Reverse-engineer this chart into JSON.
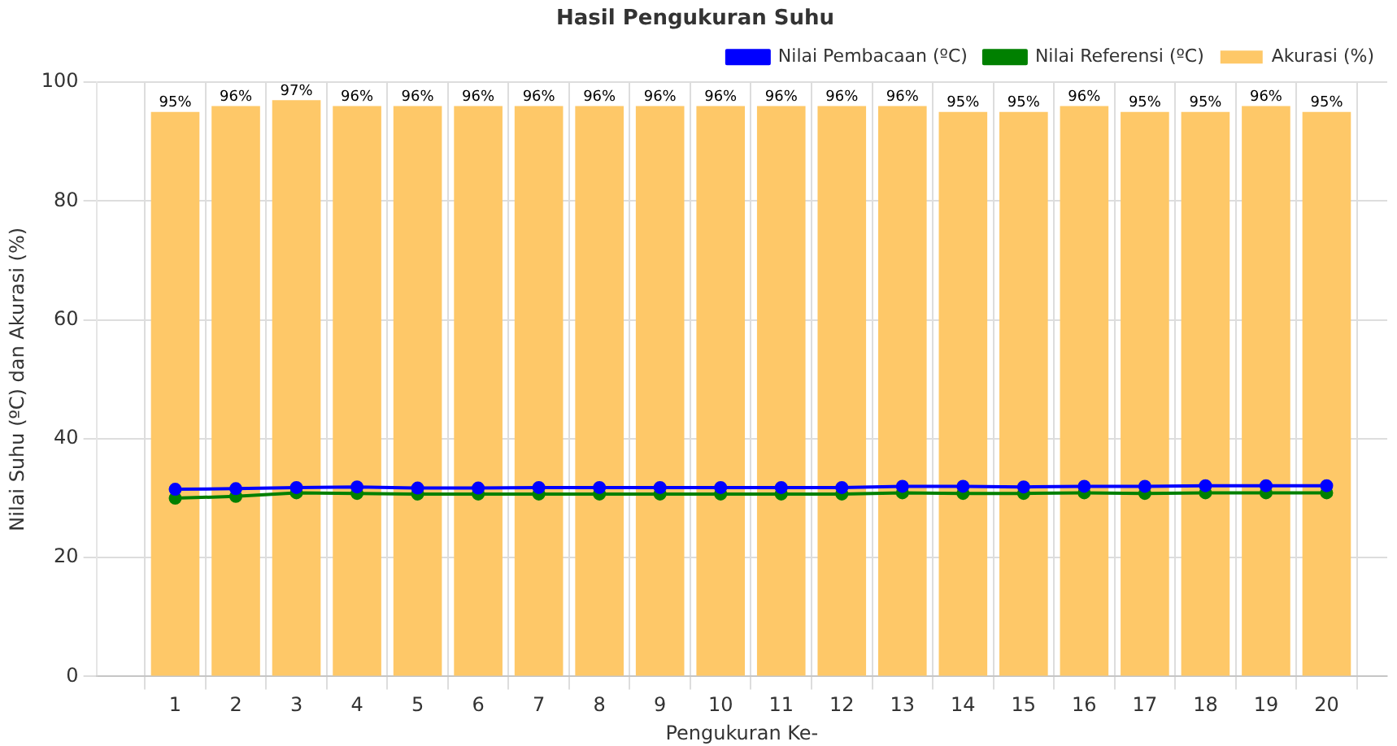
{
  "chart_data": {
    "type": "bar",
    "title": "Hasil Pengukuran Suhu",
    "xlabel": "Pengukuran Ke-",
    "ylabel": "Nilai Suhu (ºC) dan Akurasi (%)",
    "x": [
      1,
      2,
      3,
      4,
      5,
      6,
      7,
      8,
      9,
      10,
      11,
      12,
      13,
      14,
      15,
      16,
      17,
      18,
      19,
      20
    ],
    "xlim": [
      -0.3,
      21
    ],
    "xticks": [
      1,
      2,
      3,
      4,
      5,
      6,
      7,
      8,
      9,
      10,
      11,
      12,
      13,
      14,
      15,
      16,
      17,
      18,
      19,
      20
    ],
    "ylim": [
      0,
      100
    ],
    "yticks": [
      0,
      20,
      40,
      60,
      80,
      100
    ],
    "series": [
      {
        "name": "Nilai Pembacaan (ºC)",
        "type": "line",
        "color": "#0000ff",
        "marker": "circle",
        "values": [
          31.5,
          31.6,
          31.8,
          31.9,
          31.7,
          31.7,
          31.8,
          31.8,
          31.8,
          31.8,
          31.8,
          31.8,
          32.0,
          32.0,
          31.9,
          32.0,
          32.0,
          32.1,
          32.1,
          32.1
        ]
      },
      {
        "name": "Nilai Referensi (ºC)",
        "type": "line",
        "color": "#008000",
        "marker": "circle",
        "values": [
          30.0,
          30.3,
          30.9,
          30.8,
          30.7,
          30.7,
          30.7,
          30.7,
          30.7,
          30.7,
          30.7,
          30.7,
          30.9,
          30.8,
          30.8,
          30.9,
          30.8,
          30.9,
          30.9,
          30.9
        ]
      },
      {
        "name": "Akurasi (%)",
        "color": "#fec868",
        "values": [
          95,
          96,
          97,
          96,
          96,
          96,
          96,
          96,
          96,
          96,
          96,
          96,
          96,
          95,
          95,
          96,
          95,
          95,
          96,
          95
        ],
        "value_labels": [
          "95%",
          "96%",
          "97%",
          "96%",
          "96%",
          "96%",
          "96%",
          "96%",
          "96%",
          "96%",
          "96%",
          "96%",
          "96%",
          "95%",
          "95%",
          "96%",
          "95%",
          "95%",
          "96%",
          "95%"
        ]
      }
    ],
    "grid": true,
    "legend": "top right"
  }
}
